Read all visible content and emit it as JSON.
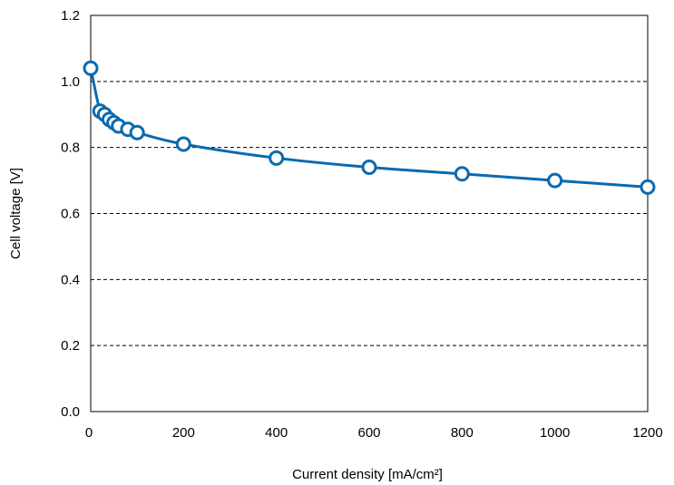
{
  "chart_data": {
    "type": "scatter",
    "xlabel": "Current density [mA/cm²]",
    "ylabel": "Cell voltage [V]",
    "xlim": [
      0,
      1200
    ],
    "ylim": [
      0,
      1.2
    ],
    "xticks": [
      "0",
      "200",
      "400",
      "600",
      "800",
      "1000",
      "1200"
    ],
    "yticks": [
      "0.0",
      "0.2",
      "0.4",
      "0.6",
      "0.8",
      "1.0",
      "1.2"
    ],
    "grid": "horizontal dashed",
    "series": [
      {
        "color": "#0a6ab0",
        "marker": "open-circle",
        "line": "smooth",
        "x": [
          0,
          20,
          30,
          40,
          50,
          60,
          80,
          100,
          200,
          400,
          600,
          800,
          1000,
          1200
        ],
        "y": [
          1.04,
          0.91,
          0.9,
          0.885,
          0.875,
          0.865,
          0.855,
          0.845,
          0.81,
          0.768,
          0.74,
          0.72,
          0.7,
          0.68
        ]
      }
    ]
  }
}
